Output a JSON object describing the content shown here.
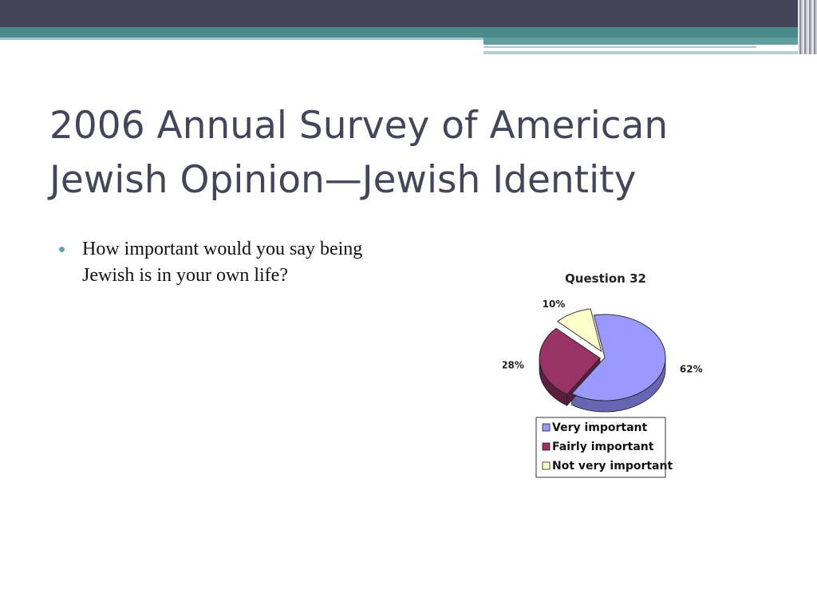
{
  "slide": {
    "title": "2006 Annual Survey of American\nJewish Opinion—Jewish Identity",
    "bullets": [
      "How important would you say being Jewish is in your own life?"
    ]
  },
  "chart_data": {
    "type": "pie",
    "title": "Question 32",
    "categories": [
      "Very important",
      "Fairly important",
      "Not very important"
    ],
    "values": [
      62,
      28,
      10
    ],
    "labels": [
      "62%",
      "28%",
      "10%"
    ],
    "colors": [
      "#9999ff",
      "#993366",
      "#ffffcc"
    ],
    "side_colors": [
      "#6666b3",
      "#5a1f3e",
      "#b3b38f"
    ],
    "legend": {
      "position": "bottom"
    }
  }
}
